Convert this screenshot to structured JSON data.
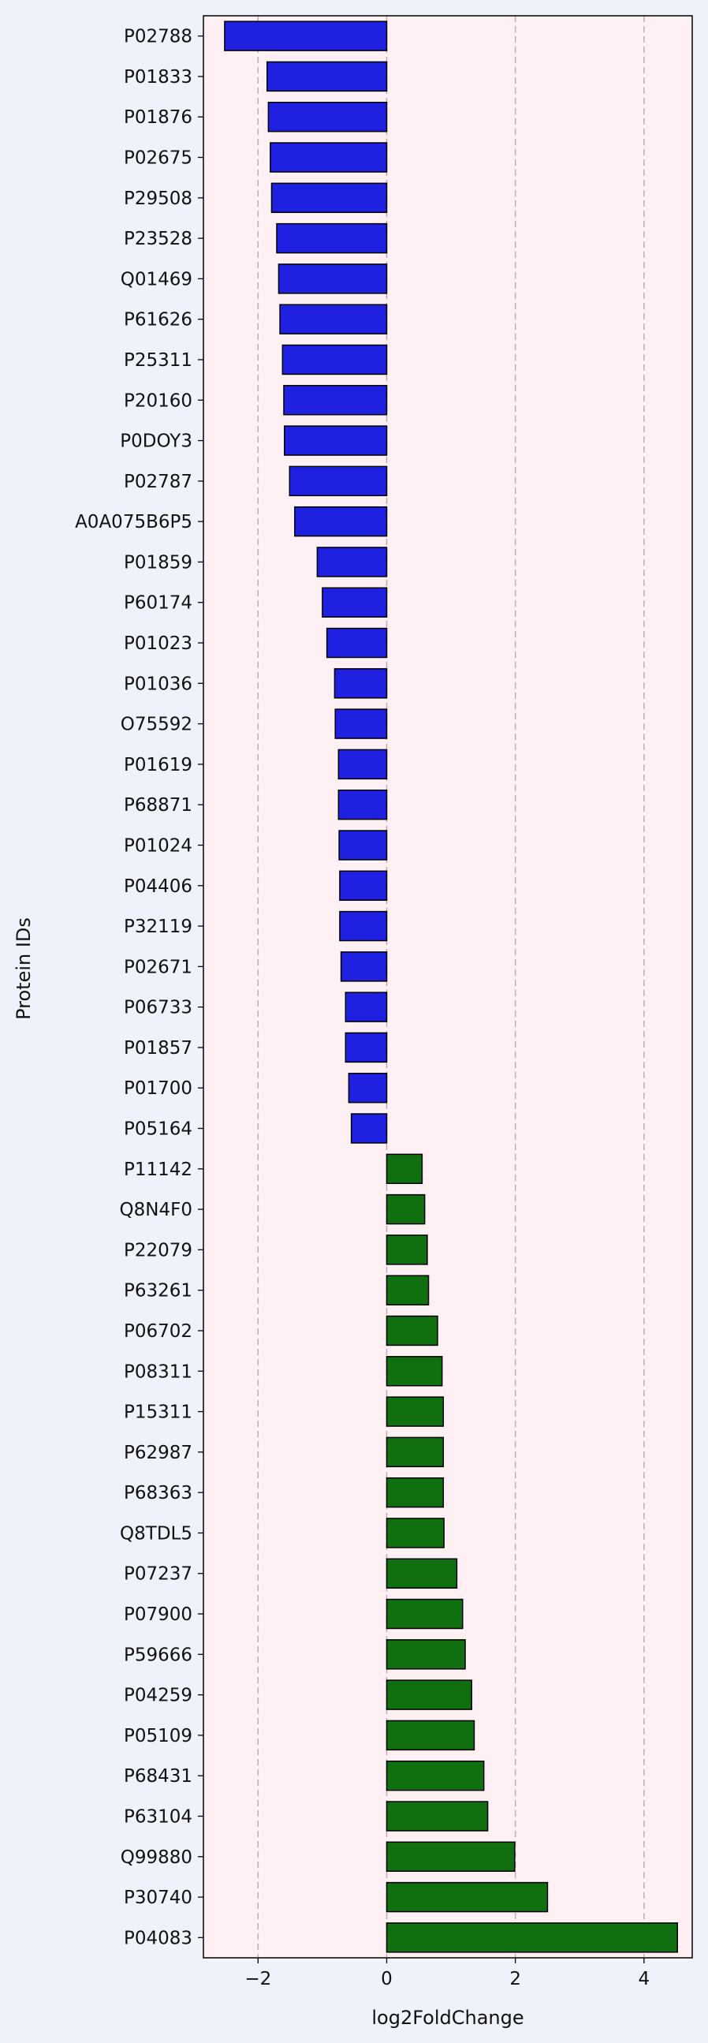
{
  "chart_data": {
    "type": "bar",
    "orientation": "horizontal",
    "xlabel": "log2FoldChange",
    "ylabel": "Protein IDs",
    "xlim": [
      -2.85,
      4.75
    ],
    "xticks": [
      -2,
      0,
      2,
      4
    ],
    "grid": "x-dashed",
    "colors": {
      "negative": "#2020e0",
      "positive": "#107010",
      "plot_background": "#fff0f3",
      "figure_background": "#eef2fb",
      "grid": "#c8a8b0",
      "edge": "#000000"
    },
    "categories": [
      "P02788",
      "P01833",
      "P01876",
      "P02675",
      "P29508",
      "P23528",
      "Q01469",
      "P61626",
      "P25311",
      "P20160",
      "P0DOY3",
      "P02787",
      "A0A075B6P5",
      "P01859",
      "P60174",
      "P01023",
      "P01036",
      "O75592",
      "P01619",
      "P68871",
      "P01024",
      "P04406",
      "P32119",
      "P02671",
      "P06733",
      "P01857",
      "P01700",
      "P05164",
      "P11142",
      "Q8N4F0",
      "P22079",
      "P63261",
      "P06702",
      "P08311",
      "P15311",
      "P62987",
      "P68363",
      "Q8TDL5",
      "P07237",
      "P07900",
      "P59666",
      "P04259",
      "P05109",
      "P68431",
      "P63104",
      "Q99880",
      "P30740",
      "P04083"
    ],
    "values": [
      -2.52,
      -1.86,
      -1.84,
      -1.81,
      -1.79,
      -1.71,
      -1.68,
      -1.66,
      -1.62,
      -1.6,
      -1.59,
      -1.51,
      -1.43,
      -1.08,
      -1.0,
      -0.93,
      -0.81,
      -0.8,
      -0.75,
      -0.75,
      -0.74,
      -0.73,
      -0.73,
      -0.71,
      -0.64,
      -0.64,
      -0.59,
      -0.55,
      0.55,
      0.59,
      0.63,
      0.65,
      0.79,
      0.86,
      0.88,
      0.88,
      0.88,
      0.89,
      1.09,
      1.18,
      1.22,
      1.32,
      1.36,
      1.51,
      1.57,
      1.99,
      2.5,
      4.52
    ]
  }
}
